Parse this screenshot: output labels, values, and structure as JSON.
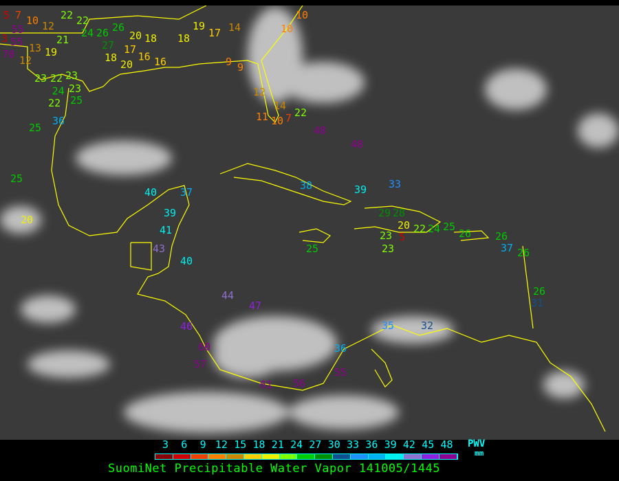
{
  "title": "SuomiNet Precipitable Water Vapor 141005/1445",
  "legend": {
    "ticks": [
      "3",
      "6",
      "9",
      "12",
      "15",
      "18",
      "21",
      "24",
      "27",
      "30",
      "33",
      "36",
      "39",
      "42",
      "45",
      "48"
    ],
    "unit_label": "PWV",
    "unit": "mm",
    "bin_colors": [
      "#8b0000",
      "#d00000",
      "#f04000",
      "#ff8000",
      "#cc8800",
      "#ffd000",
      "#f0f000",
      "#80ff00",
      "#00cc00",
      "#009000",
      "#105090",
      "#2090ff",
      "#00b0f0",
      "#00f0f0",
      "#9070d0",
      "#9020e0",
      "#900090"
    ]
  },
  "map": {
    "background": "#3a3a3a",
    "coastline_color": "#ffff00",
    "stations": [
      "5",
      "7",
      "10",
      "12",
      "3",
      "13",
      "21",
      "19",
      "12",
      "22",
      "22",
      "24",
      "26",
      "26",
      "27",
      "18",
      "20",
      "18",
      "17",
      "16",
      "20",
      "16",
      "18",
      "19",
      "17",
      "14",
      "10",
      "10",
      "9",
      "9",
      "12",
      "14",
      "11",
      "10",
      "7",
      "22",
      "23",
      "22",
      "23",
      "23",
      "24",
      "22",
      "25",
      "36",
      "25",
      "25",
      "20",
      "48",
      "48",
      "40",
      "37",
      "39",
      "41",
      "43",
      "40",
      "44",
      "47",
      "46",
      "60",
      "57",
      "38",
      "39",
      "33",
      "29",
      "28",
      "23",
      "20",
      "5",
      "22",
      "24",
      "25",
      "26",
      "23",
      "26",
      "37",
      "26",
      "26",
      "31",
      "25",
      "36",
      "35",
      "32",
      "55",
      "61",
      "56",
      "55",
      "55",
      "70"
    ]
  }
}
